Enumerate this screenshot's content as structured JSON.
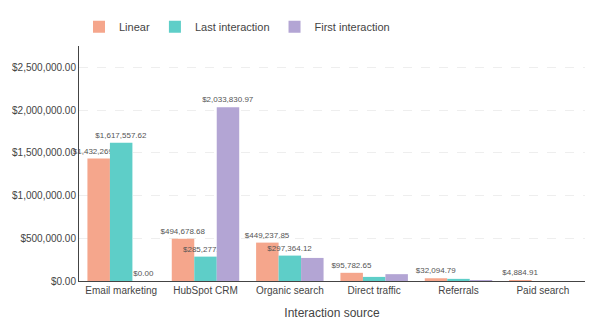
{
  "chart_data": {
    "type": "bar",
    "categories": [
      "Email marketing",
      "HubSpot CRM",
      "Organic search",
      "Direct traffic",
      "Referrals",
      "Paid search"
    ],
    "series": [
      {
        "name": "Linear",
        "color": "#F5A68C",
        "values": [
          1432269.64,
          494678.68,
          449237.85,
          95782.65,
          32094.79,
          4884.91
        ],
        "value_labels": [
          "$1,432,269.64",
          "$494,678.68",
          "$449,237.85",
          "$95,782.65",
          "$32,094.79",
          "$4,884.91"
        ]
      },
      {
        "name": "Last interaction",
        "color": "#5ECEC8",
        "values": [
          1617557.62,
          285277.17,
          297364.12,
          48000.0,
          25000.0,
          0.0
        ],
        "value_labels": [
          "$1,617,557.62",
          "$285,277.17",
          "$297,364.12",
          null,
          null,
          null
        ]
      },
      {
        "name": "First interaction",
        "color": "#B3A5D4",
        "values": [
          0.0,
          2033830.97,
          270000.0,
          80000.0,
          3000.0,
          0.0
        ],
        "value_labels": [
          "$0.00",
          "$2,033,830.97",
          null,
          null,
          null,
          null
        ]
      }
    ],
    "xlabel": "Interaction source",
    "ylim": [
      0,
      2750000
    ],
    "yticks": [
      {
        "value": 0,
        "label": "$0.00"
      },
      {
        "value": 500000,
        "label": "$500,000.00"
      },
      {
        "value": 1000000,
        "label": "$1,000,000.00"
      },
      {
        "value": 1500000,
        "label": "$1,500,000.00"
      },
      {
        "value": 2000000,
        "label": "$2,000,000.00"
      },
      {
        "value": 2500000,
        "label": "$2,500,000.00"
      }
    ],
    "grid": true,
    "legend": "upper left",
    "data_labels": true
  }
}
